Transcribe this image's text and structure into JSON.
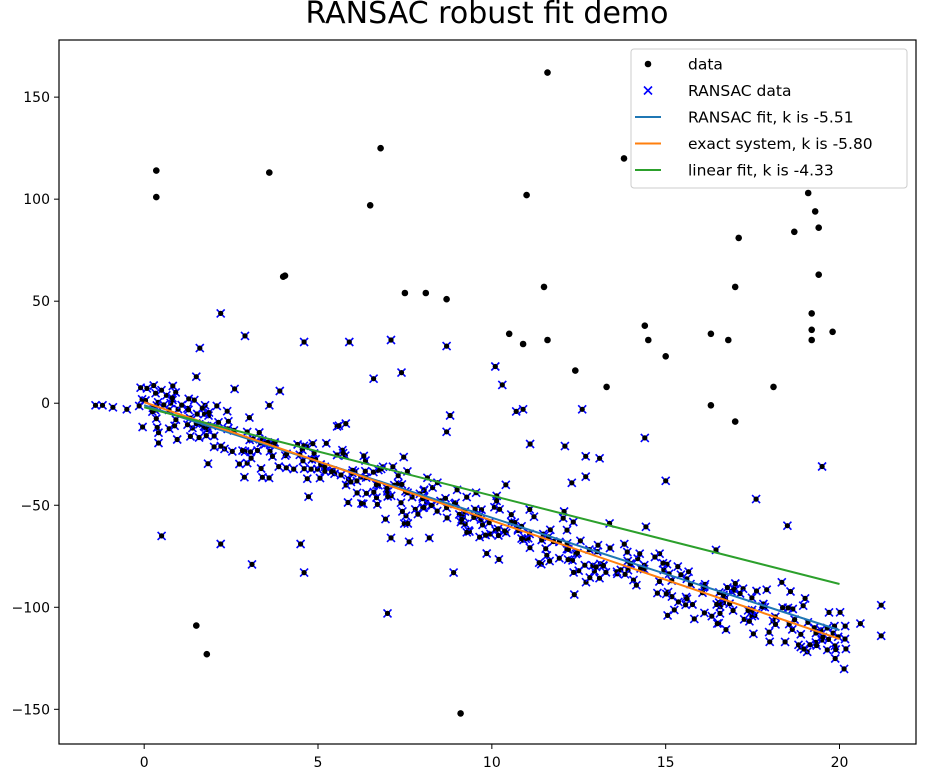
{
  "chart_data": {
    "type": "scatter",
    "title": "RANSAC robust fit demo",
    "xlabel": "",
    "ylabel": "",
    "xlim": [
      -2.45,
      22.2
    ],
    "ylim": [
      -167,
      178
    ],
    "xticks": [
      0,
      5,
      10,
      15,
      20
    ],
    "yticks": [
      -150,
      -100,
      -50,
      0,
      50,
      100,
      150
    ],
    "grid": false,
    "legend_position": "upper right",
    "legend": [
      {
        "label": "data",
        "marker": "dot",
        "color": "#000000"
      },
      {
        "label": "RANSAC data",
        "marker": "x",
        "color": "#0000ff"
      },
      {
        "label": "RANSAC fit, k is -5.51",
        "marker": "line",
        "color": "#1f77b4"
      },
      {
        "label": "exact system, k is -5.80",
        "marker": "line",
        "color": "#ff7f0e"
      },
      {
        "label": "linear fit, k is -4.33",
        "marker": "line",
        "color": "#2ca02c"
      }
    ],
    "lines": [
      {
        "name": "RANSAC fit",
        "k": -5.51,
        "color": "#1f77b4",
        "x": [
          0,
          20
        ],
        "y": [
          -1.0,
          -111.2
        ]
      },
      {
        "name": "exact system",
        "k": -5.8,
        "color": "#ff7f0e",
        "x": [
          0,
          20
        ],
        "y": [
          0.5,
          -115.5
        ]
      },
      {
        "name": "linear fit",
        "k": -4.33,
        "color": "#2ca02c",
        "x": [
          0,
          20
        ],
        "y": [
          -2.0,
          -88.6
        ]
      }
    ],
    "outliers": {
      "name": "data (not RANSAC inliers)",
      "color": "#000000",
      "points": [
        [
          0.35,
          114
        ],
        [
          0.35,
          101
        ],
        [
          3.6,
          113
        ],
        [
          6.8,
          125
        ],
        [
          6.5,
          97
        ],
        [
          4.0,
          62
        ],
        [
          4.05,
          62.5
        ],
        [
          7.5,
          54
        ],
        [
          8.1,
          54
        ],
        [
          8.7,
          51
        ],
        [
          11.6,
          162
        ],
        [
          13.8,
          120
        ],
        [
          11.0,
          102
        ],
        [
          19.1,
          103
        ],
        [
          19.3,
          94
        ],
        [
          19.4,
          86
        ],
        [
          18.7,
          84
        ],
        [
          17.1,
          81
        ],
        [
          11.5,
          57
        ],
        [
          17.0,
          57
        ],
        [
          19.4,
          63
        ],
        [
          19.2,
          44
        ],
        [
          19.2,
          36
        ],
        [
          19.8,
          35
        ],
        [
          19.2,
          31
        ],
        [
          14.5,
          31
        ],
        [
          14.4,
          38
        ],
        [
          10.5,
          34
        ],
        [
          10.9,
          29
        ],
        [
          11.6,
          31
        ],
        [
          15.0,
          23
        ],
        [
          16.3,
          34
        ],
        [
          16.8,
          31
        ],
        [
          12.4,
          16
        ],
        [
          13.3,
          8
        ],
        [
          18.1,
          8
        ],
        [
          16.3,
          -1
        ],
        [
          17.0,
          -9
        ],
        [
          1.5,
          -109
        ],
        [
          1.8,
          -123
        ],
        [
          9.1,
          -152
        ]
      ]
    },
    "ransac_scattered": {
      "name": "RANSAC data (scattered)",
      "color": "#0000ff",
      "points": [
        [
          2.2,
          44
        ],
        [
          2.9,
          33
        ],
        [
          1.6,
          27
        ],
        [
          1.5,
          13
        ],
        [
          2.6,
          7
        ],
        [
          4.6,
          30
        ],
        [
          5.9,
          30
        ],
        [
          7.1,
          31
        ],
        [
          8.7,
          28
        ],
        [
          6.6,
          12
        ],
        [
          7.4,
          15
        ],
        [
          10.1,
          18
        ],
        [
          10.3,
          9
        ],
        [
          3.9,
          6
        ],
        [
          3.6,
          -1
        ],
        [
          8.8,
          -6
        ],
        [
          8.7,
          -14
        ],
        [
          10.7,
          -4
        ],
        [
          10.9,
          -3
        ],
        [
          12.6,
          -3
        ],
        [
          11.1,
          -20
        ],
        [
          12.1,
          -21
        ],
        [
          12.7,
          -26
        ],
        [
          13.1,
          -27
        ],
        [
          14.4,
          -17
        ],
        [
          12.7,
          -36
        ],
        [
          10.4,
          -40
        ],
        [
          12.3,
          -39
        ],
        [
          15.0,
          -38
        ],
        [
          19.5,
          -31
        ],
        [
          17.6,
          -47
        ],
        [
          18.5,
          -60
        ],
        [
          5.6,
          -11
        ],
        [
          5.8,
          -10
        ],
        [
          0.5,
          -65
        ],
        [
          2.2,
          -69
        ],
        [
          3.1,
          -79
        ],
        [
          4.5,
          -69
        ],
        [
          4.6,
          -83
        ],
        [
          7.1,
          -66
        ],
        [
          8.2,
          -66
        ],
        [
          8.9,
          -83
        ],
        [
          7.0,
          -103
        ],
        [
          21.2,
          -99
        ],
        [
          21.2,
          -114
        ],
        [
          20.6,
          -108
        ],
        [
          -1.4,
          -1
        ],
        [
          -1.2,
          -1
        ],
        [
          -0.9,
          -2
        ],
        [
          -0.5,
          -3
        ]
      ]
    },
    "ransac_band": {
      "name": "RANSAC data (dense inlier band)",
      "color": "#0000ff",
      "count": 420,
      "x_range": [
        -0.2,
        20.2
      ],
      "k": -5.6,
      "b": -2,
      "spread": 8,
      "seed": 7
    }
  }
}
